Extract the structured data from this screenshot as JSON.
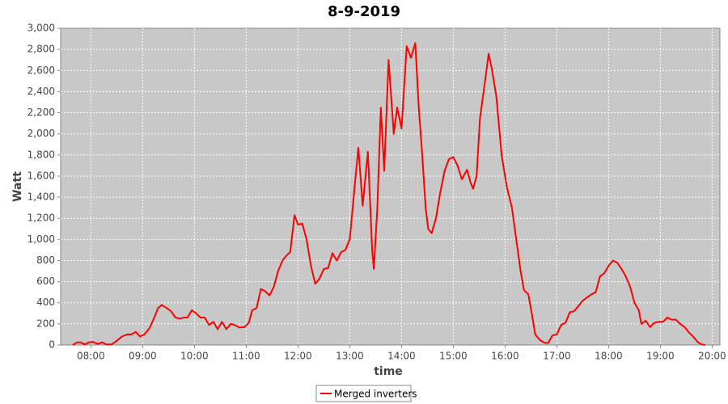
{
  "chart_data": {
    "type": "line",
    "title": "8-9-2019",
    "x_label": "time",
    "y_label": "Watt",
    "x": [
      "07:39",
      "07:44",
      "07:48",
      "07:53",
      "07:58",
      "08:02",
      "08:08",
      "08:13",
      "08:18",
      "08:24",
      "08:30",
      "08:36",
      "08:42",
      "08:47",
      "08:52",
      "08:57",
      "09:02",
      "09:08",
      "09:13",
      "09:18",
      "09:22",
      "09:28",
      "09:33",
      "09:38",
      "09:43",
      "09:48",
      "09:52",
      "09:57",
      "10:02",
      "10:07",
      "10:12",
      "10:17",
      "10:22",
      "10:27",
      "10:32",
      "10:37",
      "10:42",
      "10:47",
      "10:52",
      "10:58",
      "11:03",
      "11:07",
      "11:12",
      "11:17",
      "11:22",
      "11:27",
      "11:32",
      "11:37",
      "11:42",
      "11:47",
      "11:51",
      "11:56",
      "12:00",
      "12:05",
      "12:10",
      "12:15",
      "12:20",
      "12:25",
      "12:30",
      "12:35",
      "12:40",
      "12:45",
      "12:50",
      "12:55",
      "13:00",
      "13:04",
      "13:10",
      "13:15",
      "13:21",
      "13:26",
      "13:28",
      "13:32",
      "13:36",
      "13:40",
      "13:45",
      "13:51",
      "13:55",
      "14:00",
      "14:06",
      "14:11",
      "14:16",
      "14:20",
      "14:24",
      "14:28",
      "14:31",
      "14:35",
      "14:40",
      "14:45",
      "14:50",
      "14:55",
      "15:00",
      "15:05",
      "15:10",
      "15:16",
      "15:20",
      "15:23",
      "15:27",
      "15:31",
      "15:36",
      "15:41",
      "15:45",
      "15:50",
      "15:56",
      "16:02",
      "16:08",
      "16:13",
      "16:18",
      "16:22",
      "16:27",
      "16:31",
      "16:35",
      "16:40",
      "16:46",
      "16:50",
      "16:55",
      "17:00",
      "17:05",
      "17:10",
      "17:15",
      "17:20",
      "17:25",
      "17:30",
      "17:35",
      "17:40",
      "17:45",
      "17:50",
      "17:55",
      "18:00",
      "18:05",
      "18:10",
      "18:15",
      "18:20",
      "18:25",
      "18:30",
      "18:35",
      "18:38",
      "18:43",
      "18:48",
      "18:53",
      "18:58",
      "19:03",
      "19:08",
      "19:13",
      "19:18",
      "19:23",
      "19:28",
      "19:33",
      "19:38",
      "19:43",
      "19:48",
      "19:52"
    ],
    "series": [
      {
        "name": "Merged inverters",
        "color": "#ff0000",
        "values": [
          0,
          25,
          25,
          5,
          25,
          30,
          10,
          25,
          5,
          5,
          40,
          80,
          100,
          100,
          125,
          80,
          100,
          160,
          250,
          350,
          380,
          350,
          320,
          260,
          250,
          260,
          260,
          330,
          300,
          260,
          260,
          190,
          220,
          150,
          220,
          150,
          200,
          190,
          165,
          170,
          210,
          330,
          350,
          530,
          510,
          470,
          550,
          700,
          800,
          850,
          880,
          1230,
          1140,
          1150,
          1000,
          750,
          580,
          630,
          720,
          730,
          870,
          800,
          880,
          900,
          1000,
          1350,
          1870,
          1320,
          1830,
          900,
          720,
          1300,
          2250,
          1650,
          2700,
          2000,
          2250,
          2050,
          2830,
          2720,
          2860,
          2250,
          1800,
          1300,
          1100,
          1060,
          1200,
          1450,
          1650,
          1760,
          1780,
          1700,
          1570,
          1660,
          1540,
          1480,
          1600,
          2150,
          2450,
          2760,
          2600,
          2350,
          1800,
          1500,
          1300,
          1000,
          700,
          520,
          480,
          300,
          100,
          50,
          20,
          20,
          90,
          100,
          190,
          210,
          310,
          320,
          370,
          420,
          450,
          480,
          500,
          650,
          680,
          750,
          800,
          780,
          720,
          650,
          550,
          400,
          330,
          200,
          230,
          170,
          210,
          220,
          220,
          260,
          240,
          240,
          200,
          170,
          120,
          80,
          30,
          5,
          0
        ]
      }
    ],
    "xlim": [
      "07:25",
      "20:09"
    ],
    "xticks": [
      "08:00",
      "09:00",
      "10:00",
      "11:00",
      "12:00",
      "13:00",
      "14:00",
      "15:00",
      "16:00",
      "17:00",
      "18:00",
      "19:00",
      "20:00"
    ],
    "ylim": [
      0,
      3000
    ],
    "yticks": [
      0,
      200,
      400,
      600,
      800,
      {
        "value": 1000,
        "label": "1,000"
      },
      {
        "value": 1200,
        "label": "1,200"
      },
      {
        "value": 1400,
        "label": "1,400"
      },
      {
        "value": 1600,
        "label": "1,600"
      },
      {
        "value": 1800,
        "label": "1,800"
      },
      {
        "value": 2000,
        "label": "2,000"
      },
      {
        "value": 2200,
        "label": "2,200"
      },
      {
        "value": 2400,
        "label": "2,400"
      },
      {
        "value": 2600,
        "label": "2,600"
      },
      {
        "value": 2800,
        "label": "2,800"
      },
      {
        "value": 3000,
        "label": "3,000"
      }
    ],
    "grid": true,
    "legend": "bottom"
  }
}
